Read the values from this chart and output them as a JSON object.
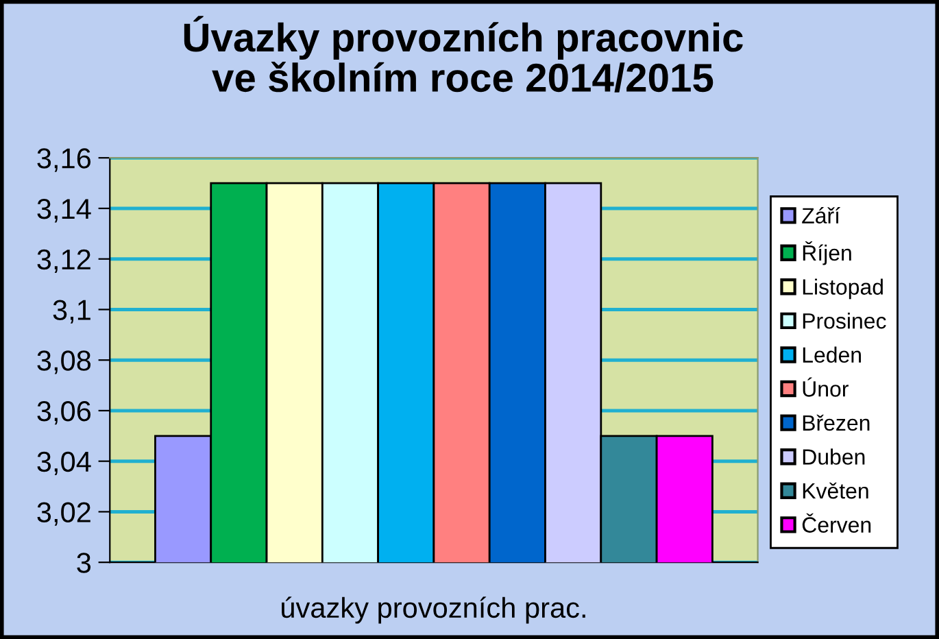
{
  "chart_data": {
    "type": "bar",
    "title": "Úvazky provozních pracovnic\nve školním roce 2014/2015",
    "categories": [
      "úvazky provozních prac."
    ],
    "series": [
      {
        "name": "Září",
        "color": "#9999ff",
        "values": [
          3.05
        ]
      },
      {
        "name": "Říjen",
        "color": "#00b050",
        "values": [
          3.15
        ]
      },
      {
        "name": "Listopad",
        "color": "#ffffcc",
        "values": [
          3.15
        ]
      },
      {
        "name": "Prosinec",
        "color": "#ccffff",
        "values": [
          3.15
        ]
      },
      {
        "name": "Leden",
        "color": "#00b0f0",
        "values": [
          3.15
        ]
      },
      {
        "name": "Únor",
        "color": "#ff8080",
        "values": [
          3.15
        ]
      },
      {
        "name": "Březen",
        "color": "#0066cc",
        "values": [
          3.15
        ]
      },
      {
        "name": "Duben",
        "color": "#ccccff",
        "values": [
          3.15
        ]
      },
      {
        "name": "Květen",
        "color": "#338899",
        "values": [
          3.05
        ]
      },
      {
        "name": "Červen",
        "color": "#ff00ff",
        "values": [
          3.05
        ]
      }
    ],
    "ylim": [
      3,
      3.16
    ],
    "yticks": [
      3,
      {
        "value": 3.02,
        "label": "3,02"
      },
      {
        "value": 3.04,
        "label": "3,04"
      },
      {
        "value": 3.06,
        "label": "3,06"
      },
      {
        "value": 3.08,
        "label": "3,08"
      },
      {
        "value": 3.1,
        "label": "3,1"
      },
      {
        "value": 3.12,
        "label": "3,12"
      },
      {
        "value": 3.14,
        "label": "3,14"
      },
      {
        "value": 3.16,
        "label": "3,16"
      }
    ],
    "grid": "y",
    "legend": "right"
  }
}
